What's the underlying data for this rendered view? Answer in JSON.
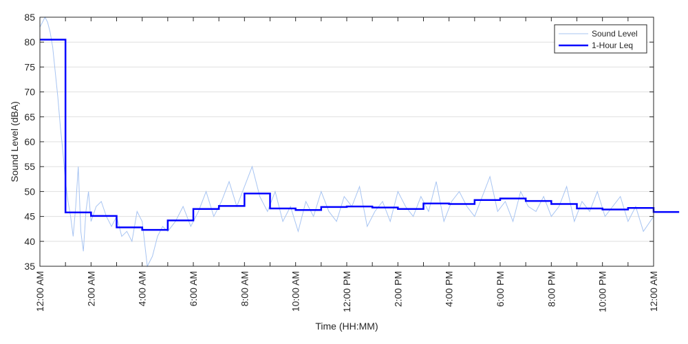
{
  "chart_data": {
    "type": "line",
    "title": "",
    "xlabel": "Time (HH:MM)",
    "ylabel": "Sound Level (dBA)",
    "xlim": [
      "12:00 AM",
      "12:00 AM"
    ],
    "ylim": [
      35,
      85
    ],
    "grid": true,
    "grid_axis": "y",
    "legend_position": "top-right",
    "y_ticks": [
      35,
      40,
      45,
      50,
      55,
      60,
      65,
      70,
      75,
      80,
      85
    ],
    "x_ticks": [
      {
        "hour": 0,
        "label": "12:00 AM"
      },
      {
        "hour": 2,
        "label": "2:00 AM"
      },
      {
        "hour": 4,
        "label": "4:00 AM"
      },
      {
        "hour": 6,
        "label": "6:00 AM"
      },
      {
        "hour": 8,
        "label": "8:00 AM"
      },
      {
        "hour": 10,
        "label": "10:00 AM"
      },
      {
        "hour": 12,
        "label": "12:00 PM"
      },
      {
        "hour": 14,
        "label": "2:00 PM"
      },
      {
        "hour": 16,
        "label": "4:00 PM"
      },
      {
        "hour": 18,
        "label": "6:00 PM"
      },
      {
        "hour": 20,
        "label": "8:00 PM"
      },
      {
        "hour": 22,
        "label": "10:00 PM"
      },
      {
        "hour": 24,
        "label": "12:00 AM"
      }
    ],
    "series": [
      {
        "name": "Sound Level",
        "color": "#a7c4f2",
        "style": "thin-line",
        "x_hours": [
          0,
          0.1,
          0.2,
          0.3,
          0.4,
          0.5,
          0.6,
          0.7,
          0.8,
          0.9,
          1.0,
          1.1,
          1.2,
          1.3,
          1.4,
          1.5,
          1.6,
          1.7,
          1.8,
          1.9,
          2.0,
          2.2,
          2.4,
          2.6,
          2.8,
          3.0,
          3.2,
          3.4,
          3.6,
          3.8,
          4.0,
          4.2,
          4.4,
          4.6,
          4.8,
          5.0,
          5.3,
          5.6,
          5.9,
          6.2,
          6.5,
          6.8,
          7.1,
          7.4,
          7.7,
          8.0,
          8.3,
          8.6,
          8.9,
          9.2,
          9.5,
          9.8,
          10.1,
          10.4,
          10.7,
          11.0,
          11.3,
          11.6,
          11.9,
          12.2,
          12.5,
          12.8,
          13.1,
          13.4,
          13.7,
          14.0,
          14.3,
          14.6,
          14.9,
          15.2,
          15.5,
          15.8,
          16.1,
          16.4,
          16.7,
          17.0,
          17.3,
          17.6,
          17.9,
          18.2,
          18.5,
          18.8,
          19.1,
          19.4,
          19.7,
          20.0,
          20.3,
          20.6,
          20.9,
          21.2,
          21.5,
          21.8,
          22.1,
          22.4,
          22.7,
          23.0,
          23.3,
          23.6,
          24.0
        ],
        "values": [
          83,
          84,
          85,
          84,
          82,
          79,
          74,
          69,
          63,
          58,
          52,
          48,
          45,
          41,
          47,
          55,
          42,
          38,
          46,
          50,
          44,
          47,
          48,
          45,
          43,
          45,
          41,
          42,
          40,
          46,
          44,
          35,
          37,
          41,
          43,
          42,
          44,
          47,
          43,
          46,
          50,
          45,
          48,
          52,
          47,
          51,
          55,
          49,
          46,
          50,
          44,
          47,
          42,
          48,
          45,
          50,
          46,
          44,
          49,
          47,
          51,
          43,
          46,
          48,
          44,
          50,
          47,
          45,
          49,
          46,
          52,
          44,
          48,
          50,
          47,
          45,
          49,
          53,
          46,
          48,
          44,
          50,
          47,
          46,
          49,
          45,
          47,
          51,
          44,
          48,
          46,
          50,
          45,
          47,
          49,
          44,
          47,
          42,
          45
        ],
        "note": "approximate envelope of the fluctuating measured level"
      },
      {
        "name": "1-Hour Leq",
        "color": "#0000ff",
        "style": "step",
        "values": [
          80.5,
          45.8,
          45.1,
          42.8,
          42.3,
          44.2,
          46.5,
          47.1,
          49.6,
          46.6,
          46.3,
          46.9,
          47.0,
          46.8,
          46.5,
          47.6,
          47.5,
          48.3,
          48.6,
          48.1,
          47.5,
          46.6,
          46.4,
          46.7,
          45.9
        ]
      }
    ]
  }
}
